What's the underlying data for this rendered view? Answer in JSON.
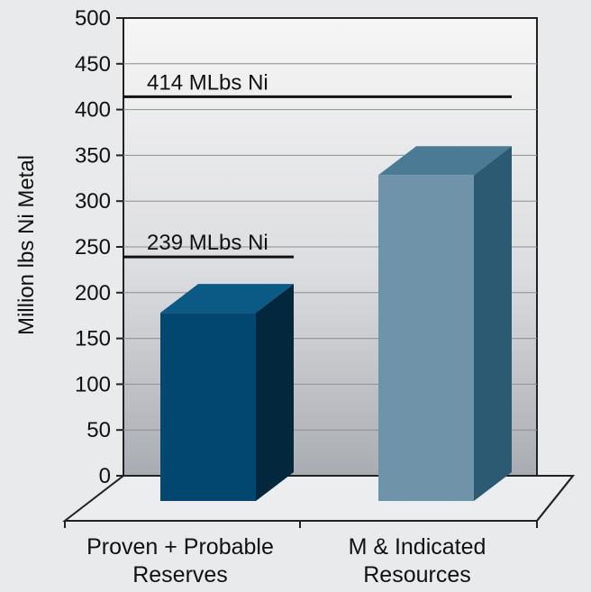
{
  "chart_data": {
    "type": "bar",
    "title": "",
    "ylabel": "Million lbs Ni Metal",
    "ylim": [
      0,
      500
    ],
    "yticks": [
      0,
      50,
      100,
      150,
      200,
      250,
      300,
      350,
      400,
      450,
      500
    ],
    "categories": [
      "Proven + Probable Reserves",
      "M & Indicated Resources"
    ],
    "category_lines": [
      [
        "Proven + Probable",
        "Reserves"
      ],
      [
        "M & Indicated",
        "Resources"
      ]
    ],
    "values": [
      239,
      414
    ],
    "annotations": [
      "239 MLbs Ni",
      "414 MLbs Ni"
    ],
    "grid": true,
    "style": "3d",
    "colors": {
      "bar1_front": "#024770",
      "bar1_top": "#0b5a86",
      "bar1_side": "#03283e",
      "bar2_front": "#6f94aa",
      "bar2_top": "#4b7a94",
      "bar2_side": "#2c5a72",
      "wall_top": "#f6f6f6",
      "wall_bottom": "#a9acb2"
    }
  }
}
